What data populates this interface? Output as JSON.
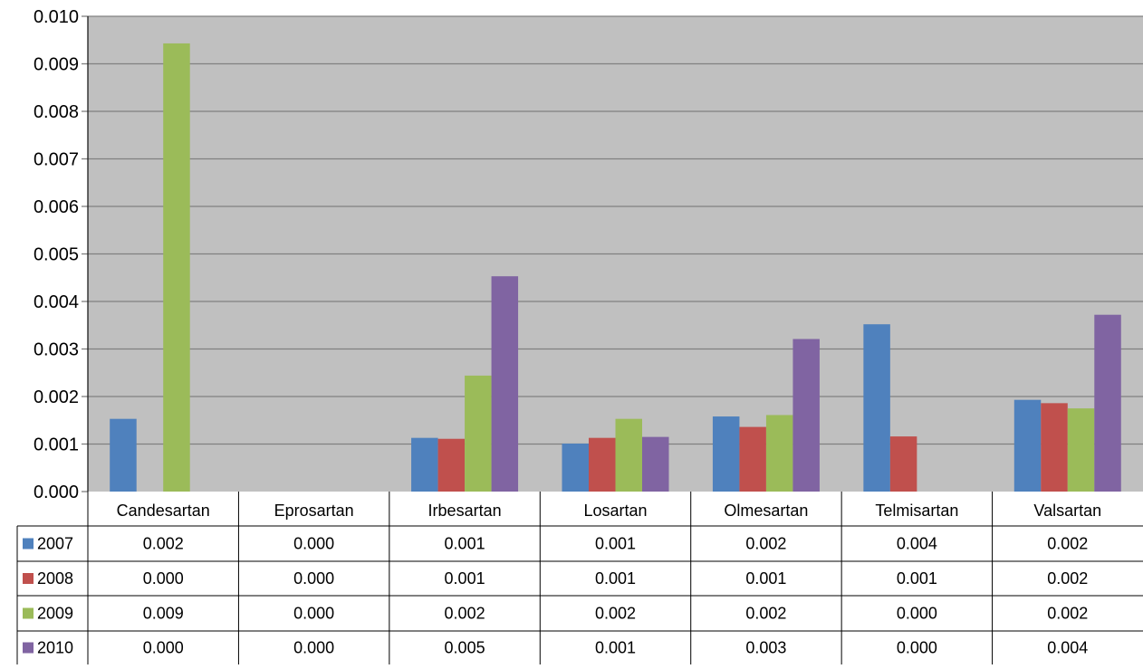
{
  "chart_data": {
    "type": "bar",
    "title": "",
    "xlabel": "",
    "ylabel": "",
    "ylim": [
      0,
      0.01
    ],
    "yticks": [
      "0.000",
      "0.001",
      "0.002",
      "0.003",
      "0.004",
      "0.005",
      "0.006",
      "0.007",
      "0.008",
      "0.009",
      "0.010"
    ],
    "grid": true,
    "legend": "data-table-left",
    "plot_background": "#c0c0c0",
    "categories": [
      "Candesartan",
      "Eprosartan",
      "Irbesartan",
      "Losartan",
      "Olmesartan",
      "Telmisartan",
      "Valsartan"
    ],
    "series": [
      {
        "name": "2007",
        "color": "#4f81bd",
        "values": [
          0.00153,
          0,
          0.00113,
          0.00101,
          0.00158,
          0.00352,
          0.00193
        ],
        "table": [
          "0.002",
          "0.000",
          "0.001",
          "0.001",
          "0.002",
          "0.004",
          "0.002"
        ]
      },
      {
        "name": "2008",
        "color": "#c0504d",
        "values": [
          0,
          0,
          0.00111,
          0.00113,
          0.00136,
          0.00116,
          0.00186
        ],
        "table": [
          "0.000",
          "0.000",
          "0.001",
          "0.001",
          "0.001",
          "0.001",
          "0.002"
        ]
      },
      {
        "name": "2009",
        "color": "#9bbb59",
        "values": [
          0.00943,
          0,
          0.00244,
          0.00153,
          0.00161,
          0,
          0.00175
        ],
        "table": [
          "0.009",
          "0.000",
          "0.002",
          "0.002",
          "0.002",
          "0.000",
          "0.002"
        ]
      },
      {
        "name": "2010",
        "color": "#8064a2",
        "values": [
          0,
          0,
          0.00453,
          0.00115,
          0.00321,
          0,
          0.00372
        ],
        "table": [
          "0.000",
          "0.000",
          "0.005",
          "0.001",
          "0.003",
          "0.000",
          "0.004"
        ]
      }
    ]
  }
}
